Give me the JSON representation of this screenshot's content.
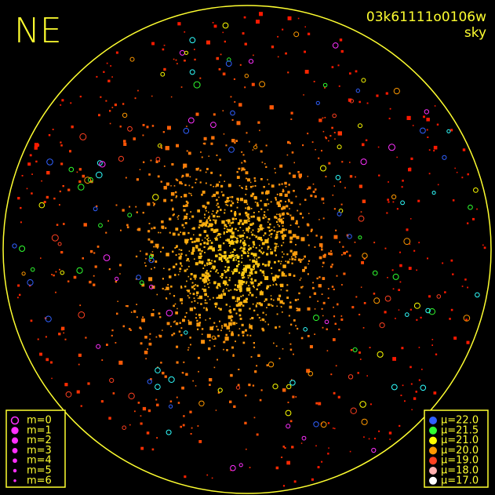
{
  "header": {
    "direction": "NE",
    "frame_id": "03k61111o0106w",
    "mode": "sky"
  },
  "magnitude_legend": [
    {
      "label": "m=0",
      "color": "#ff30ff"
    },
    {
      "label": "m=1",
      "color": "#ff30ff"
    },
    {
      "label": "m=2",
      "color": "#ff30ff"
    },
    {
      "label": "m=3",
      "color": "#ff30ff"
    },
    {
      "label": "m=4",
      "color": "#ff30ff"
    },
    {
      "label": "m=5",
      "color": "#ff30ff"
    },
    {
      "label": "m=6",
      "color": "#ff30ff"
    }
  ],
  "brightness_legend": [
    {
      "label": "μ=22.0",
      "color": "#3060ff"
    },
    {
      "label": "μ=21.5",
      "color": "#30ff30"
    },
    {
      "label": "μ=21.0",
      "color": "#ffff00"
    },
    {
      "label": "μ=20.0",
      "color": "#ff9900"
    },
    {
      "label": "μ=19.0",
      "color": "#ff4020"
    },
    {
      "label": "μ=18.0",
      "color": "#ffb0b0"
    },
    {
      "label": "μ=17.0",
      "color": "#ffffff"
    }
  ]
}
